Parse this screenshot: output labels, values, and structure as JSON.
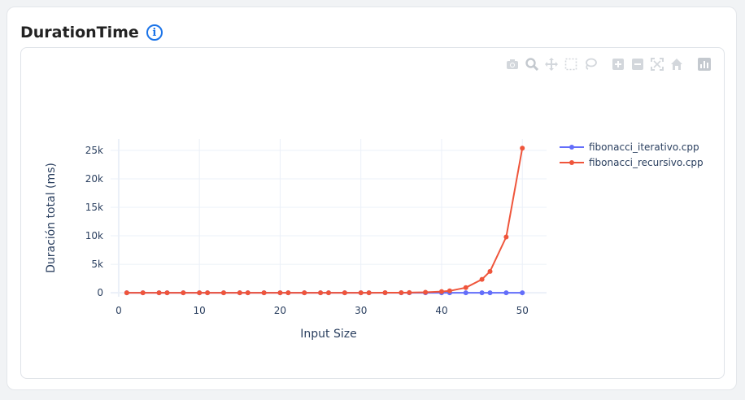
{
  "card": {
    "title": "DurationTime",
    "info_icon": "info-icon",
    "info_glyph": "i"
  },
  "modebar": [
    "camera-icon",
    "zoom-icon",
    "pan-icon",
    "box-select-icon",
    "lasso-icon",
    "zoom-in-icon",
    "zoom-out-icon",
    "autoscale-icon",
    "reset-axes-icon",
    "plotly-logo-icon"
  ],
  "chart_data": {
    "type": "line",
    "title": "",
    "xlabel": "Input Size",
    "ylabel": "Duración total (ms)",
    "xlim": [
      -1,
      53
    ],
    "ylim": [
      -700,
      27000
    ],
    "x_ticks": [
      0,
      10,
      20,
      30,
      40,
      50
    ],
    "y_ticks": [
      0,
      5000,
      10000,
      15000,
      20000,
      25000
    ],
    "y_tick_labels": [
      "0",
      "5k",
      "10k",
      "15k",
      "20k",
      "25k"
    ],
    "grid": true,
    "legend_position": "right",
    "series": [
      {
        "name": "fibonacci_iterativo.cpp",
        "color": "#636efa",
        "x": [
          1,
          3,
          5,
          6,
          8,
          10,
          11,
          13,
          15,
          16,
          18,
          20,
          21,
          23,
          25,
          26,
          28,
          30,
          31,
          33,
          35,
          36,
          38,
          40,
          41,
          43,
          45,
          46,
          48,
          50
        ],
        "y": [
          0,
          0,
          0,
          0,
          0,
          0,
          0,
          0,
          0,
          0,
          0,
          0,
          0,
          0,
          0,
          0,
          0,
          0,
          0,
          0,
          0,
          0,
          0,
          0,
          0,
          0,
          0,
          0,
          0,
          0
        ]
      },
      {
        "name": "fibonacci_recursivo.cpp",
        "color": "#ef553b",
        "x": [
          1,
          3,
          5,
          6,
          8,
          10,
          11,
          13,
          15,
          16,
          18,
          20,
          21,
          23,
          25,
          26,
          28,
          30,
          31,
          33,
          35,
          36,
          38,
          40,
          41,
          43,
          45,
          46,
          48,
          50
        ],
        "y": [
          0,
          0,
          0,
          0,
          0,
          0,
          0,
          0,
          0,
          0,
          0,
          0,
          0,
          0,
          0,
          0,
          0,
          2,
          3,
          8,
          20,
          32,
          80,
          210,
          330,
          900,
          2350,
          3750,
          9800,
          25400
        ]
      }
    ]
  }
}
